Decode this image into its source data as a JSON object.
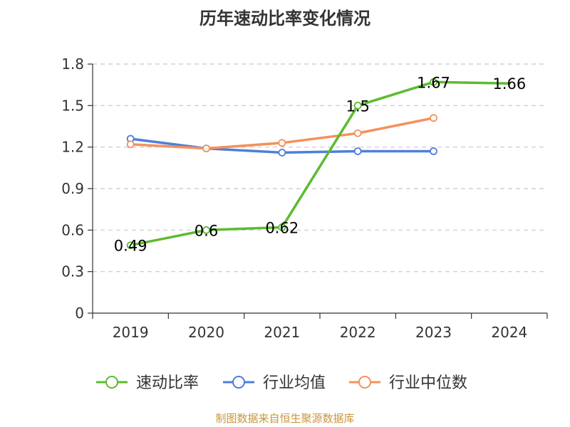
{
  "chart_data": {
    "type": "line",
    "title": "历年速动比率变化情况",
    "categories": [
      "2019",
      "2020",
      "2021",
      "2022",
      "2023",
      "2024"
    ],
    "ylim": [
      0,
      1.8
    ],
    "yticks": [
      "0",
      "0.3",
      "0.6",
      "0.9",
      "1.2",
      "1.5",
      "1.8"
    ],
    "grid": true,
    "legend_position": "bottom",
    "series": [
      {
        "name": "速动比率",
        "color": "#5dbb2f",
        "values": [
          0.49,
          0.6,
          0.62,
          1.5,
          1.67,
          1.66
        ],
        "labels": [
          "0.49",
          "0.6",
          "0.62",
          "1.5",
          "1.67",
          "1.66"
        ]
      },
      {
        "name": "行业均值",
        "color": "#4e7fd9",
        "values": [
          1.26,
          1.19,
          1.16,
          1.17,
          1.17,
          null
        ]
      },
      {
        "name": "行业中位数",
        "color": "#f5905b",
        "values": [
          1.22,
          1.19,
          1.23,
          1.3,
          1.41,
          null
        ]
      }
    ]
  },
  "source": {
    "text": "制图数据来自恒生聚源数据库",
    "color": "#c8963c"
  }
}
